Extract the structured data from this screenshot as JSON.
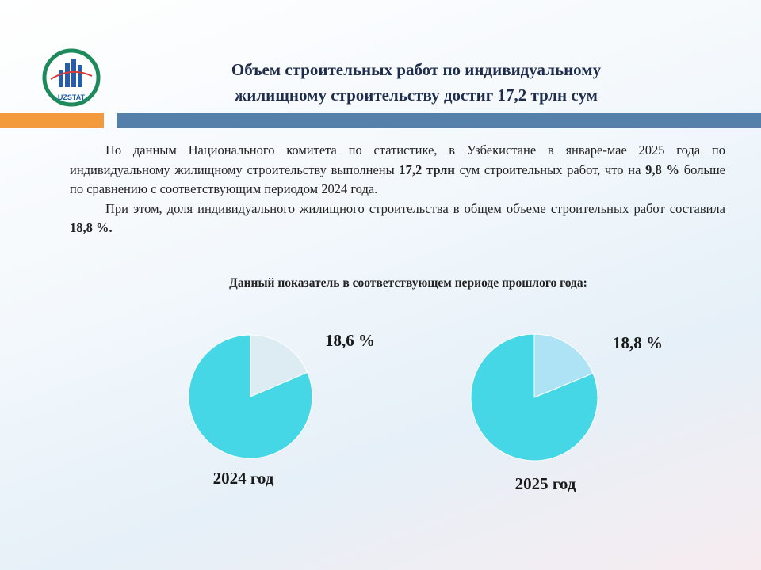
{
  "header": {
    "title_lines": [
      "Объем строительных работ по индивидуальному",
      "жилищному строительству достиг 17,2 трлн сум"
    ],
    "logo_text": "UZSTAT"
  },
  "paragraphs": [
    {
      "runs": [
        {
          "text": "По данным Национального комитета по статистике, в Узбекистане в январе-мае 2025 года по индивидуальному жилищному строительству выполнены ",
          "bold": false
        },
        {
          "text": "17,2 трлн",
          "bold": true
        },
        {
          "text": " сум строительных работ, что на ",
          "bold": false
        },
        {
          "text": "9,8 %",
          "bold": true
        },
        {
          "text": " больше по сравнению с соответствующим периодом 2024 года.",
          "bold": false
        }
      ]
    },
    {
      "runs": [
        {
          "text": "При этом, доля индивидуального жилищного строительства в общем объеме строительных работ составила ",
          "bold": false
        },
        {
          "text": "18,8 %.",
          "bold": true
        }
      ]
    }
  ],
  "subheading": "Данный показатель в соответствующем  периоде прошлого года:",
  "chart_data": [
    {
      "type": "pie",
      "title": "2024 год",
      "values": [
        18.6,
        81.4
      ],
      "value_labels": [
        "18,6 %",
        null
      ],
      "colors": [
        "#dcecf2",
        "#45d7e6"
      ]
    },
    {
      "type": "pie",
      "title": "2025 год",
      "values": [
        18.8,
        81.2
      ],
      "value_labels": [
        "18,8 %",
        null
      ],
      "colors": [
        "#ade3f4",
        "#45d7e6"
      ]
    }
  ]
}
